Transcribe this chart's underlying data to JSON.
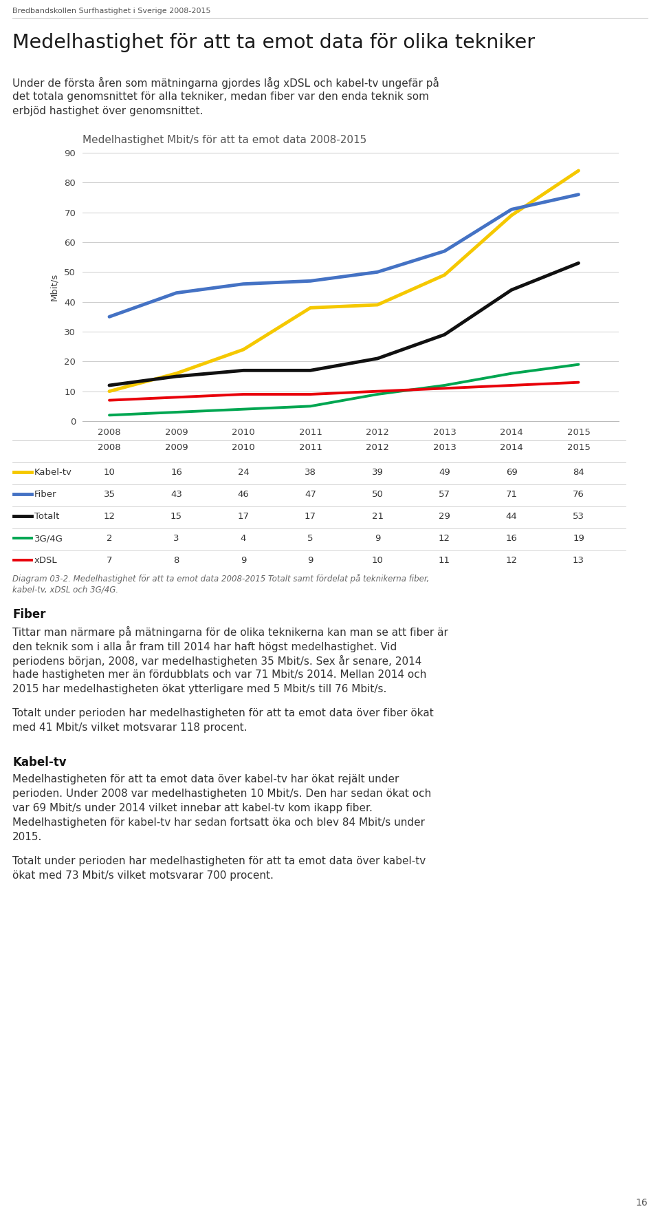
{
  "header": "Bredbandskollen Surfhastighet i Sverige 2008-2015",
  "title_main": "Medelhastighet för att ta emot data för olika tekniker",
  "body_text": "Under de första åren som mätningarna gjordes låg xDSL och kabel-tv ungefär på\ndet totala genomsnittet för alla tekniker, medan fiber var den enda teknik som\nerbjöd hastighet över genomsnittet.",
  "chart_title": "Medelhastighet Mbit/s för att ta emot data 2008-2015",
  "ylabel": "Mbit/s",
  "years": [
    2008,
    2009,
    2010,
    2011,
    2012,
    2013,
    2014,
    2015
  ],
  "series": {
    "Kabel-tv": {
      "values": [
        10,
        16,
        24,
        38,
        39,
        49,
        69,
        84
      ],
      "color": "#F5C800",
      "linewidth": 3.5
    },
    "Fiber": {
      "values": [
        35,
        43,
        46,
        47,
        50,
        57,
        71,
        76
      ],
      "color": "#4472C4",
      "linewidth": 3.5
    },
    "Totalt": {
      "values": [
        12,
        15,
        17,
        17,
        21,
        29,
        44,
        53
      ],
      "color": "#111111",
      "linewidth": 3.5
    },
    "3G/4G": {
      "values": [
        2,
        3,
        4,
        5,
        9,
        12,
        16,
        19
      ],
      "color": "#00A651",
      "linewidth": 2.8
    },
    "xDSL": {
      "values": [
        7,
        8,
        9,
        9,
        10,
        11,
        12,
        13
      ],
      "color": "#E8000A",
      "linewidth": 2.8
    }
  },
  "ylim": [
    0,
    90
  ],
  "yticks": [
    0,
    10,
    20,
    30,
    40,
    50,
    60,
    70,
    80,
    90
  ],
  "caption_line1": "Diagram 03-2. Medelhastighet för att ta emot data 2008-2015 Totalt samt fördelat på teknikerna fiber,",
  "caption_line2": "kabel-tv, xDSL och 3G/4G.",
  "section_fiber_title": "Fiber",
  "section_fiber_para1_lines": [
    "Tittar man närmare på mätningarna för de olika teknikerna kan man se att fiber är",
    "den teknik som i alla år fram till 2014 har haft högst medelhastighet. Vid",
    "periodens början, 2008, var medelhastigheten 35 Mbit/s. Sex år senare, 2014",
    "hade hastigheten mer än fördubblats och var 71 Mbit/s 2014. Mellan 2014 och",
    "2015 har medelhastigheten ökat ytterligare med 5 Mbit/s till 76 Mbit/s."
  ],
  "section_fiber_para2_lines": [
    "Totalt under perioden har medelhastigheten för att ta emot data över fiber ökat",
    "med 41 Mbit/s vilket motsvarar 118 procent."
  ],
  "section_kabeltv_title": "Kabel-tv",
  "section_kabeltv_para1_lines": [
    "Medelhastigheten för att ta emot data över kabel-tv har ökat rejält under",
    "perioden. Under 2008 var medelhastigheten 10 Mbit/s. Den har sedan ökat och",
    "var 69 Mbit/s under 2014 vilket innebar att kabel-tv kom ikapp fiber.",
    "Medelhastigheten för kabel-tv har sedan fortsatt öka och blev 84 Mbit/s under",
    "2015."
  ],
  "section_kabeltv_para2_lines": [
    "Totalt under perioden har medelhastigheten för att ta emot data över kabel-tv",
    "ökat med 73 Mbit/s vilket motsvarar 700 procent."
  ],
  "page_number": "16",
  "bg_color": "#FFFFFF"
}
